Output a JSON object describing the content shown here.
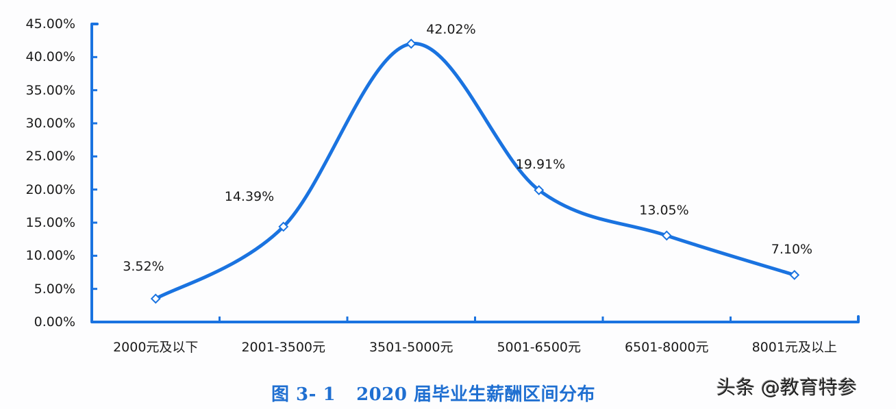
{
  "chart_data": {
    "type": "line",
    "title": "图 3- 1    2020 届毕业生薪酬区间分布",
    "xlabel": "",
    "ylabel": "",
    "categories": [
      "2000元及以下",
      "2001-3500元",
      "3501-5000元",
      "5001-6500元",
      "6501-8000元",
      "8001元及以上"
    ],
    "series": [
      {
        "name": "2020届毕业生薪酬区间分布",
        "values": [
          3.52,
          14.39,
          42.02,
          19.91,
          13.05,
          7.1
        ],
        "labels": [
          "3.52%",
          "14.39%",
          "42.02%",
          "19.91%",
          "13.05%",
          "7.10%"
        ],
        "color": "#1a73e0",
        "smooth": true,
        "marker": "diamond"
      }
    ],
    "ylim": [
      0,
      45
    ],
    "yticks": [
      "0.00%",
      "5.00%",
      "10.00%",
      "15.00%",
      "20.00%",
      "25.00%",
      "30.00%",
      "35.00%",
      "40.00%",
      "45.00%"
    ],
    "grid": false,
    "legend": "none"
  },
  "caption": {
    "figure_number": "图 3- 1",
    "text": "2020 届毕业生薪酬区间分布"
  },
  "watermark": "头条 @教育特参",
  "colors": {
    "line": "#1a73e0",
    "axis": "#1a73e0",
    "caption": "#1f6fd1",
    "text": "#1a1a1a"
  }
}
